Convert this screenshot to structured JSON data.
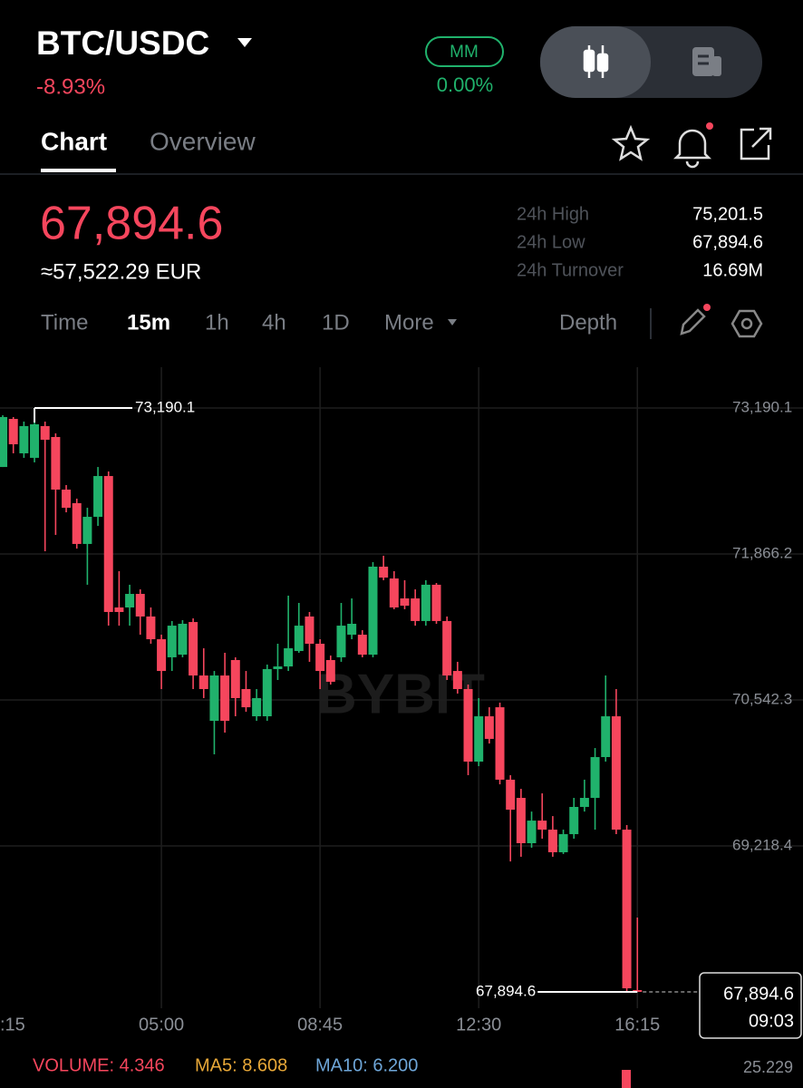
{
  "header": {
    "pair": "BTC/USDC",
    "change": "-8.93%",
    "mm_label": "MM",
    "mm_value": "0.00%"
  },
  "tabs": [
    "Chart",
    "Overview"
  ],
  "price": {
    "last": "67,894.6",
    "fiat": "≈57,522.29 EUR"
  },
  "stats": [
    {
      "label": "24h High",
      "value": "75,201.5"
    },
    {
      "label": "24h Low",
      "value": "67,894.6"
    },
    {
      "label": "24h Turnover",
      "value": "16.69M"
    }
  ],
  "timeframes": [
    "Time",
    "15m",
    "1h",
    "4h",
    "1D",
    "More"
  ],
  "depth": "Depth",
  "chart_data": {
    "type": "candlestick",
    "watermark": "BYBIT",
    "up_color": "#20b26c",
    "down_color": "#f6465d",
    "grid": true,
    "open": [
      72655,
      73091,
      72779,
      72738,
      73026,
      72927,
      72450,
      72327,
      71957,
      72203,
      72573,
      71381,
      71381,
      71504,
      71299,
      71093,
      70929,
      70953,
      71249,
      70764,
      70353,
      70764,
      70904,
      70641,
      70394,
      70394,
      70822,
      70846,
      70986,
      71299,
      71052,
      70904,
      70929,
      71134,
      71134,
      70953,
      71751,
      71644,
      71463,
      71463,
      71258,
      71587,
      71258,
      70805,
      70641,
      69983,
      70394,
      70476,
      69819,
      69654,
      69243,
      69448,
      69366,
      69161,
      69325,
      69572,
      69654,
      70024,
      70394,
      69366,
      67911
    ],
    "high": [
      73124,
      73108,
      73067,
      73190.1,
      73067,
      72960,
      72491,
      72368,
      72285,
      72655,
      72614,
      71710,
      71587,
      71545,
      71381,
      71134,
      71258,
      71266,
      71282,
      71011,
      70805,
      70970,
      70929,
      70805,
      70641,
      70863,
      71052,
      71488,
      71422,
      71340,
      71093,
      70945,
      71422,
      71463,
      71175,
      71792,
      71850,
      71710,
      71628,
      71545,
      71628,
      71603,
      71299,
      70888,
      70682,
      70559,
      70476,
      70518,
      69860,
      69736,
      69530,
      69695,
      69489,
      69366,
      69654,
      69819,
      70106,
      70764,
      70641,
      69407,
      68569
    ],
    "low": [
      72655,
      72779,
      72738,
      72697,
      71891,
      72039,
      72244,
      71915,
      71587,
      72121,
      71216,
      71216,
      71216,
      71134,
      71052,
      70641,
      70805,
      70929,
      70641,
      70559,
      70049,
      70246,
      70394,
      70435,
      70353,
      70353,
      70723,
      70805,
      70970,
      70888,
      70641,
      70682,
      70888,
      71093,
      70929,
      70929,
      71628,
      71365,
      71365,
      71216,
      71216,
      71233,
      70723,
      70600,
      69860,
      69942,
      70147,
      69777,
      69078,
      69120,
      69202,
      69284,
      69120,
      69145,
      69284,
      69530,
      69366,
      69983,
      69325,
      67895,
      67894.6
    ],
    "close": [
      73108,
      72861,
      73026,
      73042,
      72902,
      72450,
      72285,
      71957,
      72203,
      72573,
      71340,
      71340,
      71504,
      71299,
      71093,
      70805,
      71216,
      71233,
      70764,
      70641,
      70764,
      70353,
      70559,
      70476,
      70559,
      70822,
      70846,
      71011,
      71216,
      71052,
      70805,
      70707,
      71216,
      71233,
      70953,
      71751,
      71652,
      71381,
      71397,
      71258,
      71587,
      71258,
      70764,
      70641,
      69983,
      70394,
      70189,
      69819,
      69547,
      69243,
      69448,
      69366,
      69161,
      69325,
      69572,
      69654,
      70024,
      70394,
      69366,
      67927,
      67894.6
    ],
    "xlim": [
      -0.26,
      75.66
    ],
    "xticks": [
      {
        "value": 0,
        "label": ":15"
      },
      {
        "value": 15,
        "label": "05:00"
      },
      {
        "value": 30,
        "label": "08:45"
      },
      {
        "value": 45,
        "label": "12:30"
      },
      {
        "value": 60,
        "label": "16:15"
      }
    ],
    "ylim": [
      67434,
      73560
    ],
    "yticks": [
      {
        "value": 73190.1,
        "label": "73,190.1"
      },
      {
        "value": 71866.2,
        "label": "71,866.2"
      },
      {
        "value": 70542.3,
        "label": "70,542.3"
      },
      {
        "value": 69218.4,
        "label": "69,218.4"
      }
    ],
    "max_marker": {
      "value": 73190.1,
      "label": "73,190.1"
    },
    "min_marker": {
      "value": 67894.6,
      "label": "67,894.6"
    },
    "last_price": {
      "value": 67894.6,
      "label": "67,894.6"
    },
    "countdown": "09:03"
  },
  "indicators": {
    "volume": "VOLUME: 4.346",
    "ma5": "MA5: 8.608",
    "ma10": "MA10: 6.200",
    "axis_value": "25.229"
  }
}
